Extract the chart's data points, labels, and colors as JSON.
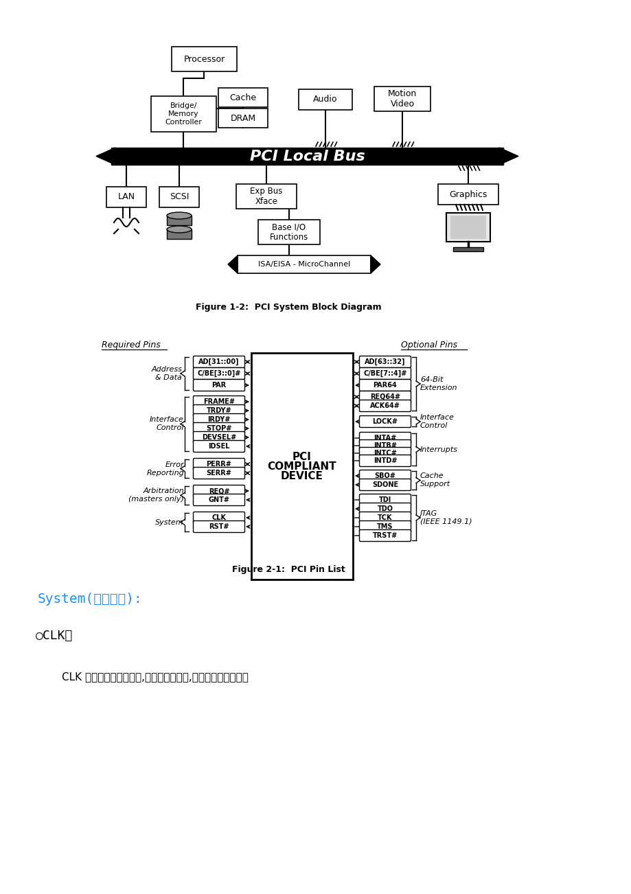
{
  "bg_color": "#ffffff",
  "fig_caption1": "Figure 1-2:  PCI System Block Diagram",
  "fig_caption2": "Figure 2-1:  PCI Pin List",
  "system_heading_ascii": "System(",
  "system_heading_chinese": "系统讯号",
  "system_heading_end": "):",
  "system_heading_color": "#1e8fff",
  "clk_bullet": "○CLK：",
  "clk_text": "CLK 讯号为一种输入讯号,其提供所有交易,涉及总线仲裁等的时",
  "pci_bus_label": "PCI Local Bus",
  "pci_compliant_device": [
    "PCI",
    "COMPLIANT",
    "DEVICE"
  ],
  "required_pins_label": "Required Pins",
  "optional_pins_label": "Optional Pins"
}
